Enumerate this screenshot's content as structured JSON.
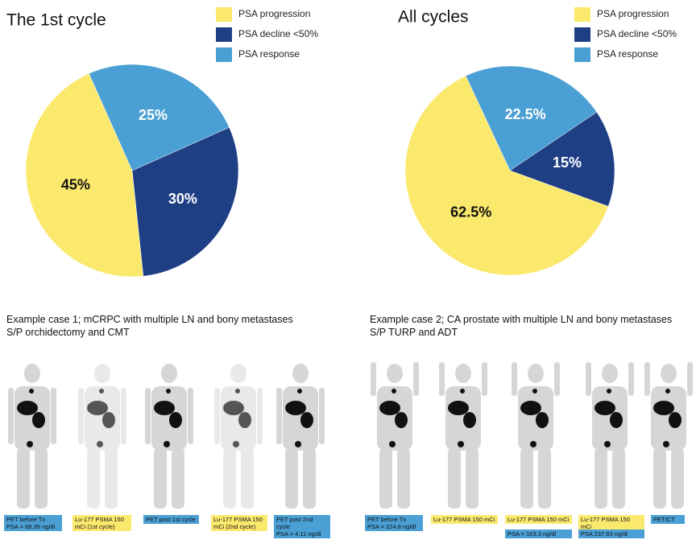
{
  "chart_data": [
    {
      "type": "pie",
      "title": "The 1st cycle",
      "categories": [
        "PSA progression",
        "PSA decline <50%",
        "PSA response"
      ],
      "values": [
        45,
        30,
        25
      ],
      "value_labels": [
        "45%",
        "30%",
        "25%"
      ],
      "colors": [
        "#fbe96e",
        "#1f3f85",
        "#4a9fd4"
      ]
    },
    {
      "type": "pie",
      "title": "All cycles",
      "categories": [
        "PSA progression",
        "PSA decline <50%",
        "PSA response"
      ],
      "values": [
        62.5,
        15,
        22.5
      ],
      "value_labels": [
        "62.5%",
        "15%",
        "22.5%"
      ],
      "colors": [
        "#fbe96e",
        "#1f3f85",
        "#4a9fd4"
      ]
    }
  ],
  "cases": [
    {
      "caption": [
        "Example case 1; mCRPC with multiple LN and bony metastases",
        "S/P orchidectomy and CMT"
      ],
      "panels": [
        {
          "boxes": [
            {
              "lines": [
                "PET before Tx",
                "PSA = 68.35 ng/dl"
              ],
              "color": "#4a9fd4"
            }
          ]
        },
        {
          "boxes": [
            {
              "lines": [
                "Lu-177 PSMA 150",
                "mCi (1st cycle)"
              ],
              "color": "#fbe96e"
            }
          ]
        },
        {
          "boxes": [
            {
              "lines": [
                "PET post 1st cycle"
              ],
              "color": "#4a9fd4"
            }
          ]
        },
        {
          "boxes": [
            {
              "lines": [
                "Lu-177 PSMA 150",
                "mCi (2nd cycle)"
              ],
              "color": "#fbe96e"
            }
          ]
        },
        {
          "boxes": [
            {
              "lines": [
                "PET post 2nd cycle",
                "PSA = 4.11 ng/dl"
              ],
              "color": "#4a9fd4"
            }
          ]
        }
      ]
    },
    {
      "caption": [
        "Example case 2; CA prostate with multiple LN and bony metastases",
        "S/P TURP and ADT"
      ],
      "panels": [
        {
          "boxes": [
            {
              "lines": [
                "PET before Tx",
                "PSA = 224.8 ng/dl"
              ],
              "color": "#4a9fd4"
            }
          ]
        },
        {
          "boxes": [
            {
              "lines": [
                "Lu-177 PSMA 150 mCi"
              ],
              "color": "#fbe96e"
            }
          ]
        },
        {
          "boxes": [
            {
              "lines": [
                "Lu-177 PSMA 150 mCi"
              ],
              "color": "#fbe96e"
            },
            {
              "lines": [
                "PSA = 163.3 ng/dl"
              ],
              "color": "#4a9fd4"
            }
          ]
        },
        {
          "boxes": [
            {
              "lines": [
                "Lu-177 PSMA 150 mCi"
              ],
              "color": "#fbe96e"
            },
            {
              "lines": [
                "PSA 237.93 ng/dl"
              ],
              "color": "#4a9fd4"
            }
          ]
        },
        {
          "boxes": [
            {
              "lines": [
                "PET/CT"
              ],
              "color": "#4a9fd4"
            }
          ]
        }
      ]
    }
  ]
}
